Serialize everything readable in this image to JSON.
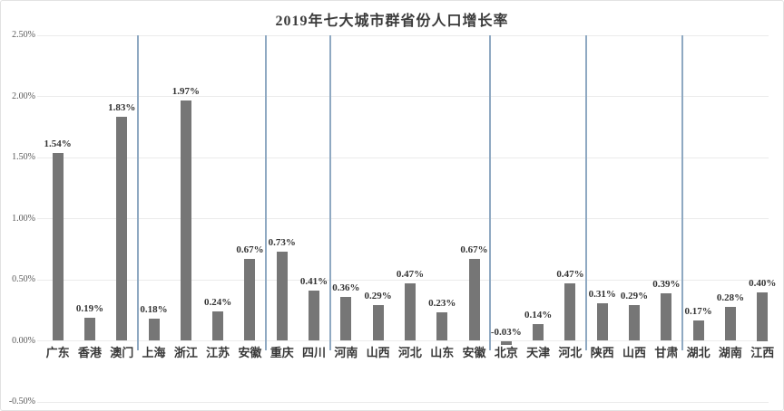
{
  "chart_data": {
    "type": "bar",
    "title": "2019年七大城市群省份人口增长率",
    "xlabel": "",
    "ylabel": "",
    "ylim": [
      -0.5,
      2.5
    ],
    "ytick_step": 0.5,
    "ytick_labels": [
      "2.50%",
      "2.00%",
      "1.50%",
      "1.00%",
      "0.50%",
      "0.00%",
      "-0.50%"
    ],
    "grid": true,
    "legend": "none",
    "value_suffix": "%",
    "groups": [
      {
        "categories": [
          "广东",
          "香港",
          "澳门"
        ],
        "values": [
          1.54,
          0.19,
          1.83
        ]
      },
      {
        "categories": [
          "上海",
          "浙江",
          "江苏",
          "安徽"
        ],
        "values": [
          0.18,
          1.97,
          0.24,
          0.67
        ]
      },
      {
        "categories": [
          "重庆",
          "四川"
        ],
        "values": [
          0.73,
          0.41
        ]
      },
      {
        "categories": [
          "河南",
          "山西",
          "河北",
          "山东",
          "安徽"
        ],
        "values": [
          0.36,
          0.29,
          0.47,
          0.23,
          0.67
        ]
      },
      {
        "categories": [
          "北京",
          "天津",
          "河北"
        ],
        "values": [
          -0.03,
          0.14,
          0.47
        ]
      },
      {
        "categories": [
          "陕西",
          "山西",
          "甘肃"
        ],
        "values": [
          0.31,
          0.29,
          0.39
        ]
      },
      {
        "categories": [
          "湖北",
          "湖南",
          "江西"
        ],
        "values": [
          0.17,
          0.28,
          0.4
        ]
      }
    ],
    "bar_labels": [
      "1.54%",
      "0.19%",
      "1.83%",
      "0.18%",
      "1.97%",
      "0.24%",
      "0.67%",
      "0.73%",
      "0.41%",
      "0.36%",
      "0.29%",
      "0.47%",
      "0.23%",
      "0.67%",
      "-0.03%",
      "0.14%",
      "0.47%",
      "0.31%",
      "0.29%",
      "0.39%",
      "0.17%",
      "0.28%",
      "0.40%"
    ]
  },
  "colors": {
    "bar": "#767676",
    "separator": "#8fa9c2",
    "gridline": "#ebebeb",
    "value_label": "#333333",
    "category_label": "#383838",
    "axis_text": "#595959",
    "background": "#ffffff"
  }
}
